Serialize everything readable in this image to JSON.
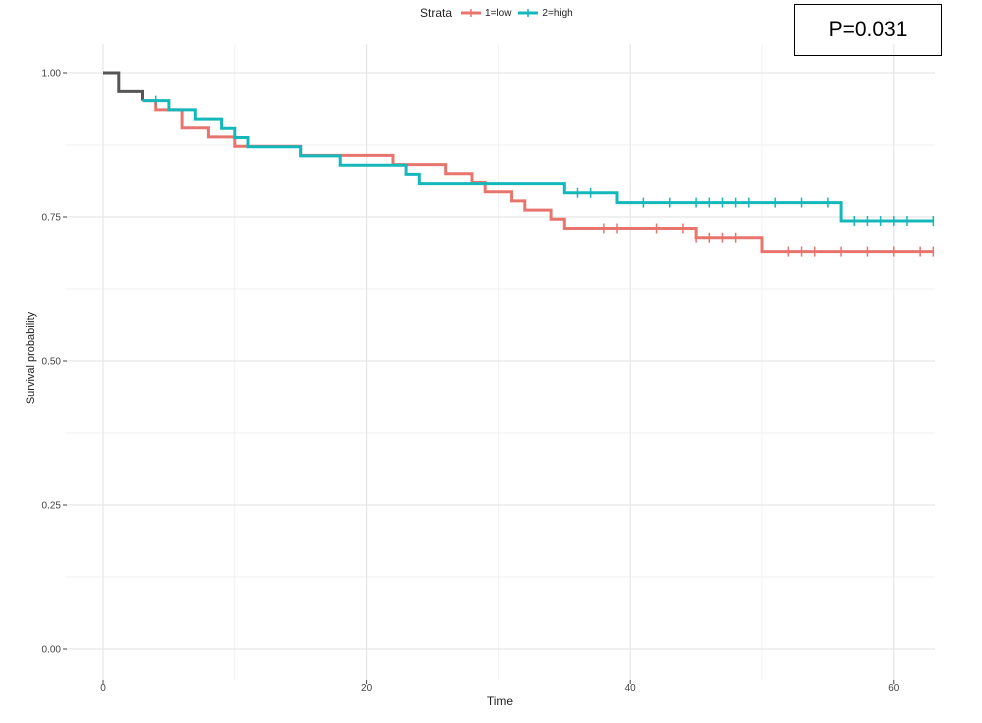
{
  "chart_data": {
    "type": "line",
    "subtype": "kaplan-meier step",
    "title": "",
    "xlabel": "Time",
    "ylabel": "Survival probability",
    "xlim": [
      0,
      63
    ],
    "ylim": [
      0,
      1.0
    ],
    "xticks": [
      0,
      20,
      40,
      60
    ],
    "xtick_labels": [
      "0",
      "20",
      "40",
      "60"
    ],
    "yticks": [
      0,
      0.25,
      0.5,
      0.75,
      1.0
    ],
    "ytick_labels": [
      "0.00",
      "0.25",
      "0.50",
      "0.75",
      "1.00"
    ],
    "grid": true,
    "legend": {
      "title": "Strata",
      "placement": "top-center",
      "entries": [
        "1=low",
        "2=high"
      ]
    },
    "annotation": "P=0.031",
    "shared_segment": {
      "color": "#555555",
      "x": [
        0,
        1.2,
        1.2,
        3,
        3
      ],
      "y": [
        1.0,
        1.0,
        0.968,
        0.968,
        0.952
      ]
    },
    "series": [
      {
        "name": "1=low",
        "color": "#E8756D",
        "x": [
          3,
          4,
          4,
          6,
          6,
          8,
          8,
          10,
          10,
          15,
          15,
          22,
          22,
          26,
          26,
          28,
          28,
          29,
          29,
          31,
          31,
          32,
          32,
          34,
          34,
          35,
          35,
          45,
          45,
          50,
          50,
          63
        ],
        "y": [
          0.952,
          0.952,
          0.936,
          0.936,
          0.905,
          0.905,
          0.889,
          0.889,
          0.873,
          0.873,
          0.857,
          0.857,
          0.841,
          0.841,
          0.825,
          0.825,
          0.81,
          0.81,
          0.794,
          0.794,
          0.778,
          0.778,
          0.762,
          0.762,
          0.746,
          0.746,
          0.73,
          0.73,
          0.714,
          0.714,
          0.69,
          0.69
        ],
        "censor_x": [
          38,
          39,
          42,
          44,
          45,
          46,
          47,
          48,
          52,
          53,
          54,
          56,
          58,
          60,
          62,
          63
        ],
        "censor_y": [
          0.73,
          0.73,
          0.73,
          0.73,
          0.714,
          0.714,
          0.714,
          0.714,
          0.69,
          0.69,
          0.69,
          0.69,
          0.69,
          0.69,
          0.69,
          0.69
        ]
      },
      {
        "name": "2=high",
        "color": "#14B8BB",
        "x": [
          3,
          5,
          5,
          7,
          7,
          9,
          9,
          10,
          10,
          11,
          11,
          15,
          15,
          18,
          18,
          23,
          23,
          24,
          24,
          35,
          35,
          39,
          39,
          56,
          56,
          63
        ],
        "y": [
          0.952,
          0.952,
          0.936,
          0.936,
          0.92,
          0.92,
          0.904,
          0.904,
          0.888,
          0.888,
          0.872,
          0.872,
          0.856,
          0.856,
          0.84,
          0.84,
          0.824,
          0.824,
          0.808,
          0.808,
          0.792,
          0.792,
          0.775,
          0.775,
          0.743,
          0.743
        ],
        "censor_x": [
          4,
          36,
          37,
          41,
          43,
          45,
          46,
          47,
          48,
          49,
          51,
          53,
          55,
          57,
          58,
          59,
          60,
          61,
          63
        ],
        "censor_y": [
          0.952,
          0.792,
          0.792,
          0.775,
          0.775,
          0.775,
          0.775,
          0.775,
          0.775,
          0.775,
          0.775,
          0.775,
          0.775,
          0.743,
          0.743,
          0.743,
          0.743,
          0.743,
          0.743
        ]
      }
    ]
  }
}
